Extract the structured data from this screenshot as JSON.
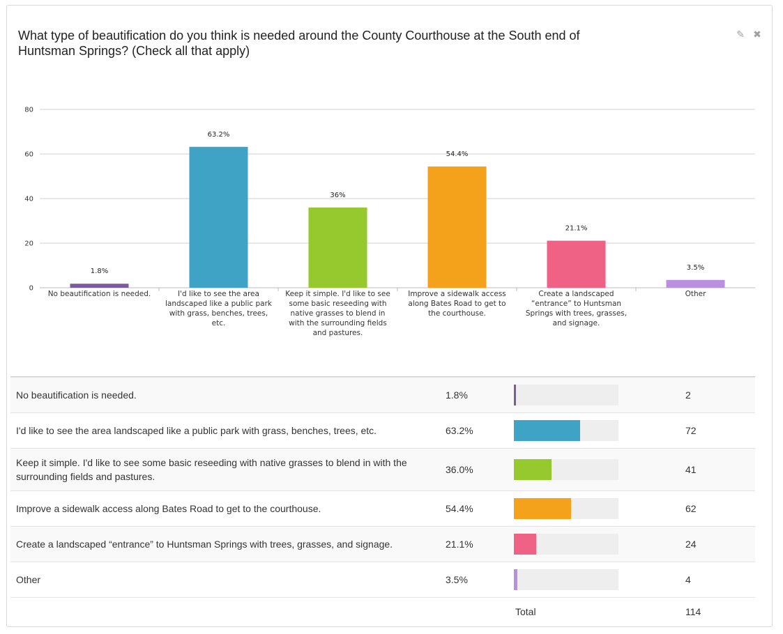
{
  "question": "What type of beautification do you think is needed around the County Courthouse at the South end of Huntsman Springs? (Check all that apply)",
  "tools": {
    "edit_icon": "pencil-icon",
    "close_icon": "close-icon"
  },
  "chart_data": {
    "type": "bar",
    "categories": [
      "No beautification is needed.",
      "I'd like to see the area landscaped like a public park with grass, benches, trees, etc.",
      "Keep it simple. I'd like to see some basic reseeding with native grasses to blend in with the surrounding fields and pastures.",
      "Improve a sidewalk access along Bates Road to get to the courthouse.",
      "Create a landscaped “entrance” to Huntsman Springs with trees, grasses, and signage.",
      "Other"
    ],
    "values": [
      1.8,
      63.2,
      36,
      54.4,
      21.1,
      3.5
    ],
    "data_labels": [
      "1.8%",
      "63.2%",
      "36%",
      "54.4%",
      "21.1%",
      "3.5%"
    ],
    "colors": [
      "#7b5c9a",
      "#3fa3c5",
      "#96c92d",
      "#f4a21b",
      "#f06186",
      "#bb8fe0"
    ],
    "ylim": [
      0,
      80
    ],
    "yticks": [
      0,
      20,
      40,
      60,
      80
    ],
    "grid": true
  },
  "table": {
    "rows": [
      {
        "label": "No beautification is needed.",
        "percent": "1.8%",
        "count": "2"
      },
      {
        "label": "I'd like to see the area landscaped like a public park with grass, benches, trees, etc.",
        "percent": "63.2%",
        "count": "72"
      },
      {
        "label": "Keep it simple. I'd like to see some basic reseeding with native grasses to blend in with the surrounding fields and pastures.",
        "percent": "36.0%",
        "count": "41"
      },
      {
        "label": "Improve a sidewalk access along Bates Road to get to the courthouse.",
        "percent": "54.4%",
        "count": "62"
      },
      {
        "label": "Create a landscaped “entrance” to Huntsman Springs with trees, grasses, and signage.",
        "percent": "21.1%",
        "count": "24"
      },
      {
        "label": "Other",
        "percent": "3.5%",
        "count": "4"
      }
    ],
    "total_label": "Total",
    "total_count": "114"
  }
}
